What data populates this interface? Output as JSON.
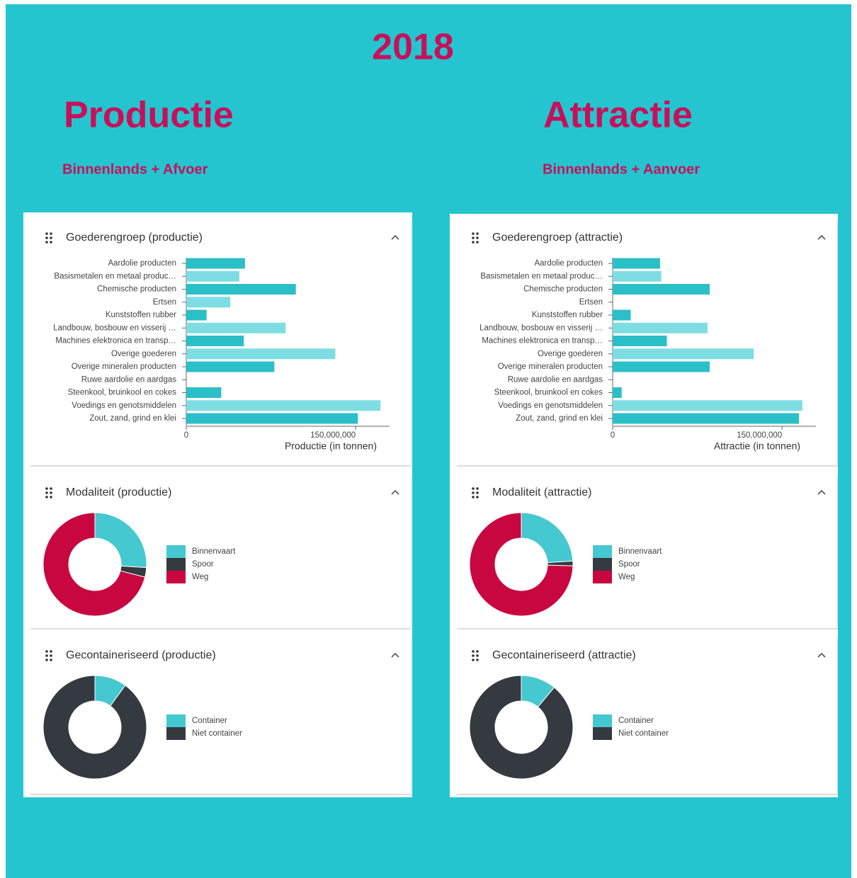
{
  "header": {
    "title": "2018"
  },
  "columns": [
    {
      "title": "Productie",
      "subtitle": "Binnenlands + Afvoer"
    },
    {
      "title": "Attractie",
      "subtitle": "Binnenlands + Aanvoer"
    }
  ],
  "chart_data": [
    {
      "type": "bar",
      "title": "Goederengroep (productie)",
      "categories": [
        "Aardolie producten",
        "Basismetalen en metaal produc…",
        "Chemische producten",
        "Ertsen",
        "Kunststoffen rubber",
        "Landbouw, bosbouw en visserij …",
        "Machines elektronica en transp…",
        "Overige goederen",
        "Overige mineralen producten",
        "Ruwe aardolie en aardgas",
        "Steenkool, bruinkool en cokes",
        "Voedings en genotsmiddelen",
        "Zout, zand, grind en klei"
      ],
      "values": [
        52000000,
        47000000,
        97000000,
        39000000,
        18000000,
        88000000,
        51000000,
        132000000,
        78000000,
        0,
        31000000,
        172000000,
        152000000
      ],
      "colors": [
        "#2bbfc8",
        "#7edde2",
        "#2bbfc8",
        "#7edde2",
        "#2bbfc8",
        "#7edde2",
        "#2bbfc8",
        "#7edde2",
        "#2bbfc8",
        "#7edde2",
        "#2bbfc8",
        "#7edde2",
        "#2bbfc8"
      ],
      "xlim": [
        0,
        180000000
      ],
      "xticks": [
        0,
        {
          "value": 150000000,
          "label": "150,000,000"
        }
      ],
      "xlabel": "Productie (in tonnen)"
    },
    {
      "type": "donut",
      "title": "Modaliteit (productie)",
      "categories": [
        "Binnenvaart",
        "Spoor",
        "Weg"
      ],
      "values": [
        26,
        3,
        71
      ],
      "colors": [
        "#45c8d0",
        "#343a40",
        "#c8063f"
      ]
    },
    {
      "type": "donut",
      "title": "Gecontaineriseerd (productie)",
      "categories": [
        "Container",
        "Niet container"
      ],
      "values": [
        10,
        90
      ],
      "colors": [
        "#45c8d0",
        "#343a40"
      ]
    },
    {
      "type": "bar",
      "title": "Goederengroep (attractie)",
      "categories": [
        "Aardolie producten",
        "Basismetalen en metaal produc…",
        "Chemische producten",
        "Ertsen",
        "Kunststoffen rubber",
        "Landbouw, bosbouw en visserij …",
        "Machines elektronica en transp…",
        "Overige goederen",
        "Overige mineralen producten",
        "Ruwe aardolie en aardgas",
        "Steenkool, bruinkool en cokes",
        "Voedings en genotsmiddelen",
        "Zout, zand, grind en klei"
      ],
      "values": [
        42000000,
        43000000,
        86000000,
        0,
        16000000,
        84000000,
        48000000,
        125000000,
        86000000,
        0,
        8000000,
        168000000,
        165000000
      ],
      "colors": [
        "#2bbfc8",
        "#7edde2",
        "#2bbfc8",
        "#7edde2",
        "#2bbfc8",
        "#7edde2",
        "#2bbfc8",
        "#7edde2",
        "#2bbfc8",
        "#7edde2",
        "#2bbfc8",
        "#7edde2",
        "#2bbfc8"
      ],
      "xlim": [
        0,
        180000000
      ],
      "xticks": [
        0,
        {
          "value": 150000000,
          "label": "150,000,000"
        }
      ],
      "xlabel": "Attractie (in tonnen)"
    },
    {
      "type": "donut",
      "title": "Modaliteit (attractie)",
      "categories": [
        "Binnenvaart",
        "Spoor",
        "Weg"
      ],
      "values": [
        24,
        1.5,
        74.5
      ],
      "colors": [
        "#45c8d0",
        "#343a40",
        "#c8063f"
      ]
    },
    {
      "type": "donut",
      "title": "Gecontaineriseerd (attractie)",
      "categories": [
        "Container",
        "Niet container"
      ],
      "values": [
        11,
        89
      ],
      "colors": [
        "#45c8d0",
        "#343a40"
      ]
    }
  ]
}
